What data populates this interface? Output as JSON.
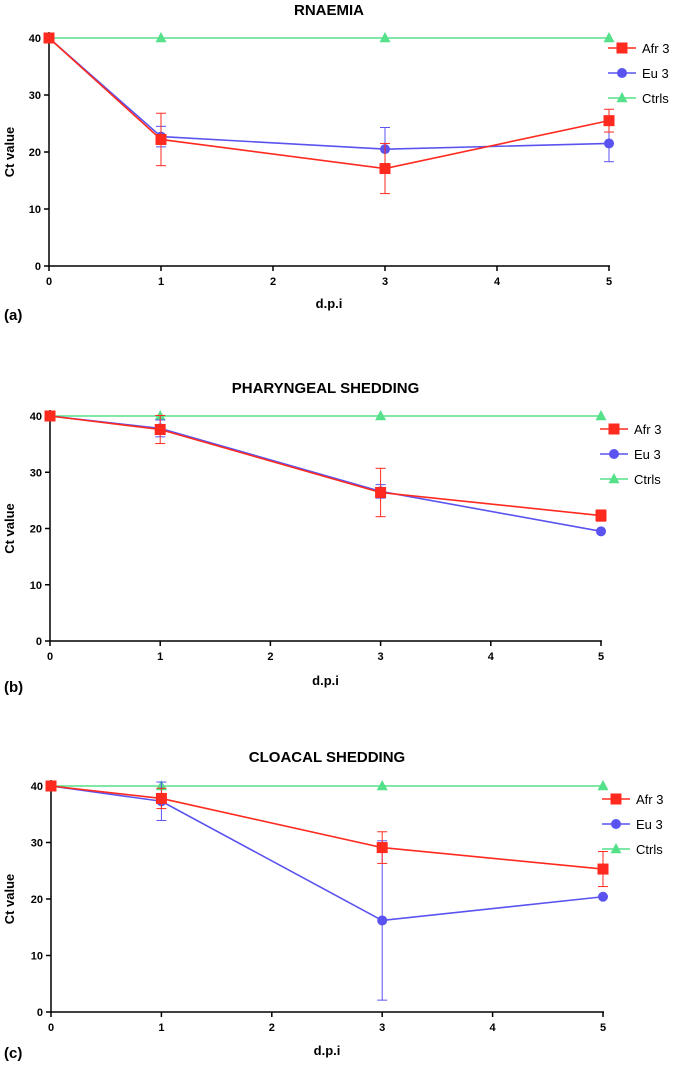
{
  "chart_data": [
    {
      "type": "line",
      "title": "RNAEMIA",
      "panel_label": "(a)",
      "xlabel": "d.p.i",
      "ylabel": "Ct value",
      "xlim": [
        0,
        5
      ],
      "ylim": [
        0,
        40
      ],
      "xticks": [
        "0",
        "1",
        "2",
        "3",
        "4",
        "5"
      ],
      "yticks": [
        "0",
        "10",
        "20",
        "30",
        "40"
      ],
      "legend_position": "right",
      "series": [
        {
          "name": "Afr 3",
          "color": "#ff2a1f",
          "marker": "square",
          "x": [
            0,
            1,
            3,
            5
          ],
          "y": [
            40,
            22.2,
            17.1,
            25.5
          ],
          "err": [
            0,
            4.6,
            4.4,
            2.0
          ]
        },
        {
          "name": "Eu 3",
          "color": "#5b53f0",
          "marker": "circle",
          "x": [
            0,
            1,
            3,
            5
          ],
          "y": [
            40,
            22.7,
            20.5,
            21.5
          ],
          "err": [
            0,
            1.8,
            3.8,
            3.2
          ]
        },
        {
          "name": "Ctrls",
          "color": "#55e08a",
          "marker": "triangle",
          "x": [
            0,
            1,
            3,
            5
          ],
          "y": [
            40,
            40,
            40,
            40
          ],
          "err": [
            0,
            0,
            0,
            0
          ]
        }
      ]
    },
    {
      "type": "line",
      "title": "PHARYNGEAL SHEDDING",
      "panel_label": "(b)",
      "xlabel": "d.p.i",
      "ylabel": "Ct value",
      "xlim": [
        0,
        5
      ],
      "ylim": [
        0,
        40
      ],
      "xticks": [
        "0",
        "1",
        "2",
        "3",
        "4",
        "5"
      ],
      "yticks": [
        "0",
        "10",
        "20",
        "30",
        "40"
      ],
      "legend_position": "right",
      "series": [
        {
          "name": "Afr 3",
          "color": "#ff2a1f",
          "marker": "square",
          "x": [
            0,
            1,
            3,
            5
          ],
          "y": [
            40,
            37.6,
            26.4,
            22.3
          ],
          "err": [
            0,
            2.5,
            4.3,
            1.0
          ]
        },
        {
          "name": "Eu 3",
          "color": "#5b53f0",
          "marker": "circle",
          "x": [
            0,
            1,
            3,
            5
          ],
          "y": [
            40,
            37.8,
            26.6,
            19.5
          ],
          "err": [
            0,
            1.5,
            1.2,
            0
          ]
        },
        {
          "name": "Ctrls",
          "color": "#55e08a",
          "marker": "triangle",
          "x": [
            0,
            1,
            3,
            5
          ],
          "y": [
            40,
            40,
            40,
            40
          ],
          "err": [
            0,
            0,
            0,
            0
          ]
        }
      ]
    },
    {
      "type": "line",
      "title": "CLOACAL SHEDDING",
      "panel_label": "(c)",
      "xlabel": "d.p.i",
      "ylabel": "Ct value",
      "xlim": [
        0,
        5
      ],
      "ylim": [
        0,
        40
      ],
      "xticks": [
        "0",
        "1",
        "2",
        "3",
        "4",
        "5"
      ],
      "yticks": [
        "0",
        "10",
        "20",
        "30",
        "40"
      ],
      "legend_position": "right",
      "series": [
        {
          "name": "Afr 3",
          "color": "#ff2a1f",
          "marker": "square",
          "x": [
            0,
            1,
            3,
            5
          ],
          "y": [
            40,
            37.8,
            29.1,
            25.3
          ],
          "err": [
            0,
            1.8,
            2.8,
            3.1
          ]
        },
        {
          "name": "Eu 3",
          "color": "#5b53f0",
          "marker": "circle",
          "x": [
            0,
            1,
            3,
            5
          ],
          "y": [
            40,
            37.3,
            16.2,
            20.4
          ],
          "err": [
            0,
            3.4,
            14.1,
            0
          ]
        },
        {
          "name": "Ctrls",
          "color": "#55e08a",
          "marker": "triangle",
          "x": [
            0,
            1,
            3,
            5
          ],
          "y": [
            40,
            40,
            40,
            40
          ],
          "err": [
            0,
            0,
            0,
            0
          ]
        }
      ]
    }
  ]
}
